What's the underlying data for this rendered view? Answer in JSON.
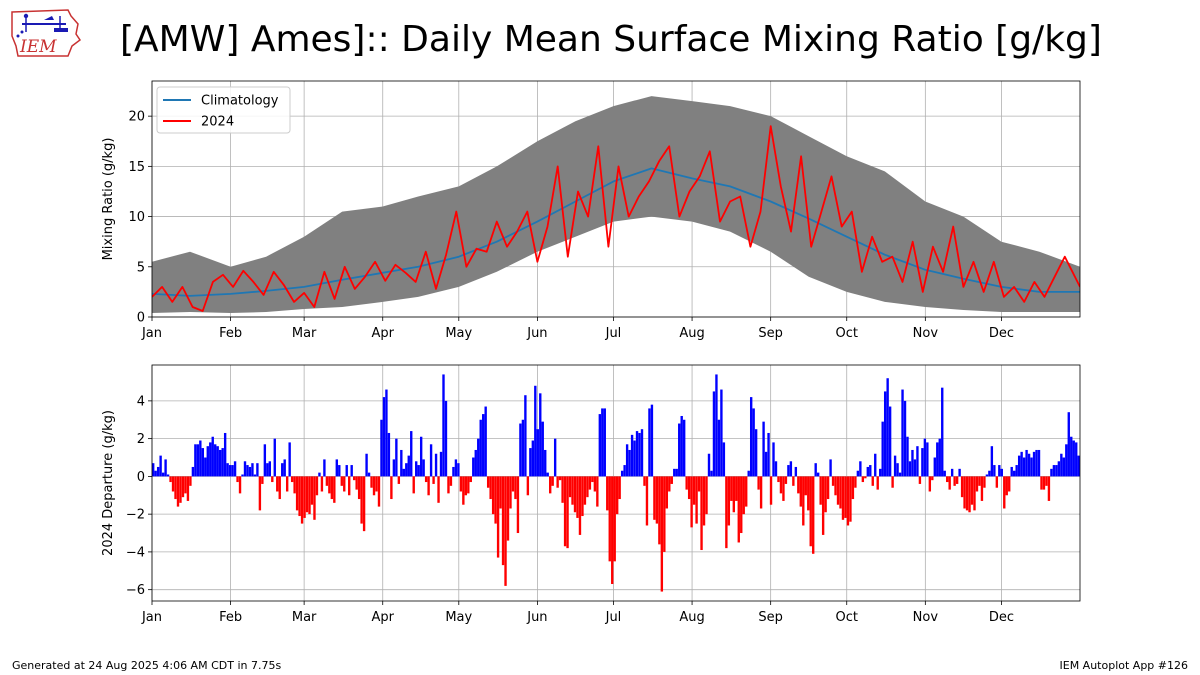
{
  "header": {
    "title": "[AMW] Ames]:: Daily Mean Surface Mixing Ratio [g/kg]",
    "logo_text": "IEM"
  },
  "footer": {
    "generated": "Generated at 24 Aug 2025 4:06 AM CDT in 7.75s",
    "app": "IEM Autoplot App #126"
  },
  "colors": {
    "climatology": "#1f77b4",
    "year": "#ff0000",
    "range_fill": "#808080",
    "positive": "#0000ff",
    "negative": "#ff0000",
    "grid": "#b0b0b0"
  },
  "chart_data": [
    {
      "type": "line",
      "ylabel": "Mixing Ratio (g/kg)",
      "ylim": [
        0,
        23.5
      ],
      "yticks": [
        0,
        5,
        10,
        15,
        20
      ],
      "xlim": [
        0,
        366
      ],
      "month_labels": [
        "Jan",
        "Feb",
        "Mar",
        "Apr",
        "May",
        "Jun",
        "Jul",
        "Aug",
        "Sep",
        "Oct",
        "Nov",
        "Dec"
      ],
      "month_starts": [
        0,
        31,
        60,
        91,
        121,
        152,
        182,
        213,
        244,
        274,
        305,
        335
      ],
      "legend": {
        "placement": "top-left",
        "entries": [
          "Climatology",
          "2024"
        ]
      },
      "grid": true,
      "series": [
        {
          "name": "Climatology",
          "x": [
            0,
            15,
            31,
            45,
            60,
            75,
            91,
            105,
            121,
            136,
            152,
            167,
            182,
            197,
            213,
            228,
            244,
            259,
            274,
            289,
            305,
            320,
            335,
            350,
            366
          ],
          "values": [
            2.3,
            2.1,
            2.3,
            2.6,
            3.0,
            3.7,
            4.4,
            5.0,
            6.0,
            7.5,
            9.5,
            11.5,
            13.5,
            14.8,
            13.8,
            13.0,
            11.5,
            9.8,
            8.0,
            6.2,
            4.7,
            3.8,
            3.0,
            2.5,
            2.5
          ]
        },
        {
          "name": "2024",
          "x": [
            0,
            4,
            8,
            12,
            16,
            20,
            24,
            28,
            32,
            36,
            40,
            44,
            48,
            52,
            56,
            60,
            64,
            68,
            72,
            76,
            80,
            84,
            88,
            92,
            96,
            100,
            104,
            108,
            112,
            116,
            120,
            124,
            128,
            132,
            136,
            140,
            144,
            148,
            152,
            156,
            160,
            164,
            168,
            172,
            176,
            180,
            184,
            188,
            192,
            196,
            200,
            204,
            208,
            212,
            216,
            220,
            224,
            228,
            232,
            236,
            240,
            244,
            248,
            252,
            256,
            260,
            264,
            268,
            272,
            276,
            280,
            284,
            288,
            292,
            296,
            300,
            304,
            308,
            312,
            316,
            320,
            324,
            328,
            332,
            336,
            340,
            344,
            348,
            352,
            356,
            360,
            366
          ],
          "values": [
            2.0,
            3.0,
            1.5,
            3.0,
            1.0,
            0.6,
            3.5,
            4.2,
            3.0,
            4.6,
            3.5,
            2.2,
            4.5,
            3.2,
            1.5,
            2.4,
            1.0,
            4.5,
            1.8,
            5.0,
            2.8,
            4.0,
            5.5,
            3.6,
            5.2,
            4.4,
            3.5,
            6.5,
            2.8,
            6.2,
            10.5,
            5.0,
            6.8,
            6.5,
            9.5,
            7.0,
            8.5,
            10.5,
            5.5,
            9.0,
            15.0,
            6.0,
            12.5,
            10.0,
            17.0,
            7.0,
            15.0,
            10.0,
            12.0,
            13.5,
            15.5,
            17.0,
            10.0,
            12.5,
            14.0,
            16.5,
            9.5,
            11.5,
            12.0,
            7.0,
            10.5,
            19.0,
            13.0,
            8.5,
            16.0,
            7.0,
            10.5,
            14.0,
            9.0,
            10.5,
            4.5,
            8.0,
            5.5,
            6.0,
            3.5,
            7.5,
            2.5,
            7.0,
            4.5,
            9.0,
            3.0,
            5.5,
            2.5,
            5.5,
            2.0,
            3.0,
            1.5,
            3.5,
            2.0,
            4.0,
            6.0,
            3.0
          ]
        }
      ],
      "range": {
        "name": "Range",
        "x": [
          0,
          15,
          31,
          45,
          60,
          75,
          91,
          105,
          121,
          136,
          152,
          167,
          182,
          197,
          213,
          228,
          244,
          259,
          274,
          289,
          305,
          320,
          335,
          350,
          366
        ],
        "upper": [
          5.5,
          6.5,
          5.0,
          6.0,
          8.0,
          10.5,
          11.0,
          12.0,
          13.0,
          15.0,
          17.5,
          19.5,
          21.0,
          22.0,
          21.5,
          21.0,
          20.0,
          18.0,
          16.0,
          14.5,
          11.5,
          10.0,
          7.5,
          6.5,
          5.0
        ],
        "lower": [
          0.4,
          0.5,
          0.4,
          0.5,
          0.8,
          1.0,
          1.5,
          2.0,
          3.0,
          4.5,
          6.5,
          8.0,
          9.5,
          10.0,
          9.5,
          8.5,
          6.5,
          4.0,
          2.5,
          1.5,
          1.0,
          0.7,
          0.5,
          0.5,
          0.5
        ]
      }
    },
    {
      "type": "bar",
      "ylabel": "2024 Departure (g/kg)",
      "ylim": [
        -6.6,
        5.9
      ],
      "yticks": [
        -6,
        -4,
        -2,
        0,
        2,
        4
      ],
      "xlim": [
        0,
        366
      ],
      "month_labels": [
        "Jan",
        "Feb",
        "Mar",
        "Apr",
        "May",
        "Jun",
        "Jul",
        "Aug",
        "Sep",
        "Oct",
        "Nov",
        "Dec"
      ],
      "month_starts": [
        0,
        31,
        60,
        91,
        121,
        152,
        182,
        213,
        244,
        274,
        305,
        335
      ],
      "grid": true,
      "values": [
        0.7,
        0.3,
        0.5,
        1.1,
        0.2,
        0.9,
        0.1,
        -0.3,
        -0.8,
        -1.2,
        -1.6,
        -1.4,
        -1.1,
        -0.9,
        -1.3,
        -0.5,
        0.5,
        1.7,
        1.7,
        1.9,
        1.5,
        1.0,
        1.6,
        1.8,
        2.1,
        1.7,
        1.6,
        1.4,
        1.5,
        2.3,
        0.7,
        0.6,
        0.6,
        0.8,
        -0.3,
        -0.9,
        0.1,
        0.8,
        0.6,
        0.5,
        0.7,
        0.1,
        0.7,
        -1.8,
        -0.4,
        1.7,
        0.7,
        0.8,
        -0.3,
        2.0,
        -0.8,
        -1.2,
        0.7,
        0.9,
        -0.8,
        1.8,
        -0.3,
        -0.9,
        -1.8,
        -2.1,
        -2.5,
        -2.2,
        -1.9,
        -2.0,
        -1.5,
        -2.3,
        -1.0,
        0.2,
        -0.8,
        0.9,
        -0.5,
        -0.9,
        -1.2,
        -1.4,
        0.9,
        0.6,
        -0.5,
        -0.8,
        0.6,
        -1.0,
        0.6,
        -0.2,
        -0.7,
        -1.2,
        -2.5,
        -2.9,
        1.2,
        0.2,
        -0.6,
        -1.0,
        -0.8,
        -1.6,
        3.0,
        4.2,
        4.6,
        2.3,
        -1.2,
        0.9,
        2.0,
        -0.4,
        1.4,
        0.4,
        0.7,
        1.1,
        2.4,
        -0.9,
        0.8,
        0.6,
        2.1,
        0.9,
        -0.3,
        -1.0,
        1.7,
        -0.4,
        1.2,
        -1.4,
        1.3,
        5.4,
        4.0,
        -0.9,
        -0.5,
        0.5,
        0.9,
        0.7,
        -0.8,
        -1.5,
        -1.0,
        -0.9,
        -0.3,
        1.0,
        1.4,
        2.0,
        3.0,
        3.3,
        3.7,
        -0.6,
        -1.2,
        -2.0,
        -2.5,
        -4.3,
        -1.7,
        -4.7,
        -5.8,
        -3.4,
        -1.7,
        -0.8,
        -1.2,
        -3.0,
        2.8,
        3.0,
        4.3,
        -1.0,
        1.5,
        1.9,
        4.8,
        2.5,
        4.4,
        2.9,
        1.4,
        0.2,
        -0.9,
        -0.5,
        2.0,
        -0.6,
        -0.2,
        -1.4,
        -3.7,
        -3.8,
        -1.1,
        -1.5,
        -1.9,
        -2.2,
        -3.1,
        -2.1,
        -1.5,
        -1.1,
        -0.7,
        -0.3,
        -0.8,
        -1.6,
        3.3,
        3.6,
        3.6,
        -1.8,
        -4.5,
        -5.7,
        -4.5,
        -2.0,
        -1.2,
        0.3,
        0.6,
        1.7,
        1.4,
        2.2,
        1.9,
        2.4,
        2.3,
        2.5,
        -0.5,
        -2.6,
        3.6,
        3.8,
        -2.3,
        -2.5,
        -3.6,
        -6.1,
        -4.0,
        -1.7,
        -0.8,
        -0.4,
        0.4,
        0.4,
        2.8,
        3.2,
        3.0,
        -0.7,
        -1.2,
        -2.7,
        -1.5,
        -2.5,
        -0.8,
        -3.9,
        -2.6,
        -2.0,
        1.2,
        0.3,
        4.5,
        5.4,
        3.0,
        4.6,
        1.8,
        -3.8,
        -2.6,
        -1.3,
        -1.9,
        -1.3,
        -3.5,
        -3.0,
        -2.0,
        -1.6,
        0.3,
        4.2,
        3.6,
        2.5,
        -0.7,
        -1.7,
        2.9,
        1.3,
        2.3,
        -1.5,
        1.8,
        0.8,
        -0.3,
        -0.9,
        -1.3,
        -0.4,
        0.6,
        0.8,
        -0.5,
        0.5,
        -0.9,
        -1.6,
        -2.6,
        -1.0,
        -1.8,
        -3.7,
        -4.1,
        0.7,
        0.2,
        -1.5,
        -3.1,
        -1.9,
        -1.2,
        0.9,
        -0.5,
        -1.0,
        -1.5,
        -1.7,
        -2.3,
        -2.2,
        -2.6,
        -2.4,
        -1.2,
        -0.6,
        0.3,
        0.8,
        -0.3,
        -0.1,
        0.5,
        0.6,
        -0.5,
        1.2,
        -0.7,
        0.4,
        2.9,
        4.5,
        5.2,
        3.7,
        -0.6,
        1.1,
        0.7,
        0.2,
        4.6,
        4.0,
        2.1,
        0.8,
        1.4,
        0.9,
        1.6,
        -0.4,
        1.5,
        2.0,
        1.8,
        -0.8,
        -0.2,
        1.0,
        1.8,
        2.0,
        4.7,
        0.3,
        -0.3,
        -0.7,
        0.4,
        -0.5,
        -0.4,
        0.4,
        -1.1,
        -1.7,
        -1.8,
        -1.9,
        -1.5,
        -1.8,
        -0.8,
        -0.5,
        -1.3,
        -0.6,
        0.1,
        0.3,
        1.6,
        0.6,
        -0.6,
        0.6,
        0.4,
        -1.7,
        -1.0,
        -0.8,
        0.5,
        0.3,
        0.6,
        1.1,
        1.3,
        1.0,
        1.4,
        1.2,
        1.0,
        1.3,
        1.4,
        1.4,
        -0.7,
        -0.7,
        -0.5,
        -1.3,
        0.4,
        0.6,
        0.6,
        0.8,
        1.2,
        1.0,
        1.7,
        3.4,
        2.1,
        1.9,
        1.8,
        1.1
      ]
    }
  ]
}
